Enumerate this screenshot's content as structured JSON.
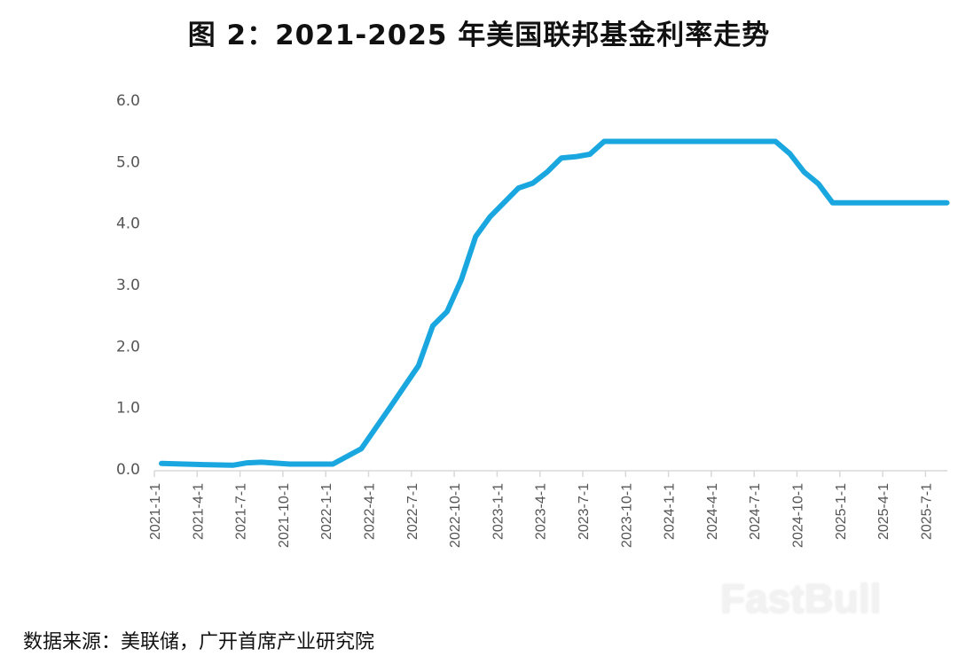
{
  "title": "图 2：2021-2025 年美国联邦基金利率走势",
  "source": "数据来源：美联储，广开首席产业研究院",
  "watermark": "FastBull",
  "colors": {
    "line": "#1aa7e0",
    "axis": "#d9d9d9",
    "tick_text": "#555555"
  },
  "chart_data": {
    "type": "line",
    "title": "图 2：2021-2025 年美国联邦基金利率走势",
    "xlabel": "",
    "ylabel": "",
    "ylim": [
      0,
      6
    ],
    "yticks": [
      "0.0",
      "1.0",
      "2.0",
      "3.0",
      "4.0",
      "5.0",
      "6.0"
    ],
    "xticks": [
      "2021-1-1",
      "2021-4-1",
      "2021-7-1",
      "2021-10-1",
      "2022-1-1",
      "2022-4-1",
      "2022-7-1",
      "2022-10-1",
      "2023-1-1",
      "2023-4-1",
      "2023-7-1",
      "2023-10-1",
      "2024-1-1",
      "2024-4-1",
      "2024-7-1",
      "2024-10-1",
      "2025-1-1",
      "2025-4-1",
      "2025-7-1"
    ],
    "grid": false,
    "legend": null,
    "series": [
      {
        "name": "美国联邦基金利率",
        "x": [
          "2021-01",
          "2021-04",
          "2021-06",
          "2021-07",
          "2021-08",
          "2021-10",
          "2022-01",
          "2022-03",
          "2022-05",
          "2022-07",
          "2022-08",
          "2022-09",
          "2022-10",
          "2022-11",
          "2022-12",
          "2023-02",
          "2023-03",
          "2023-04",
          "2023-05",
          "2023-06",
          "2023-07",
          "2023-08",
          "2024-08",
          "2024-09",
          "2024-10",
          "2024-11",
          "2024-12",
          "2025-08"
        ],
        "values": [
          0.09,
          0.07,
          0.06,
          0.1,
          0.11,
          0.08,
          0.08,
          0.33,
          1.0,
          1.68,
          2.33,
          2.56,
          3.08,
          3.78,
          4.1,
          4.57,
          4.65,
          4.83,
          5.06,
          5.08,
          5.12,
          5.33,
          5.33,
          5.13,
          4.83,
          4.64,
          4.33,
          4.33
        ]
      }
    ]
  }
}
